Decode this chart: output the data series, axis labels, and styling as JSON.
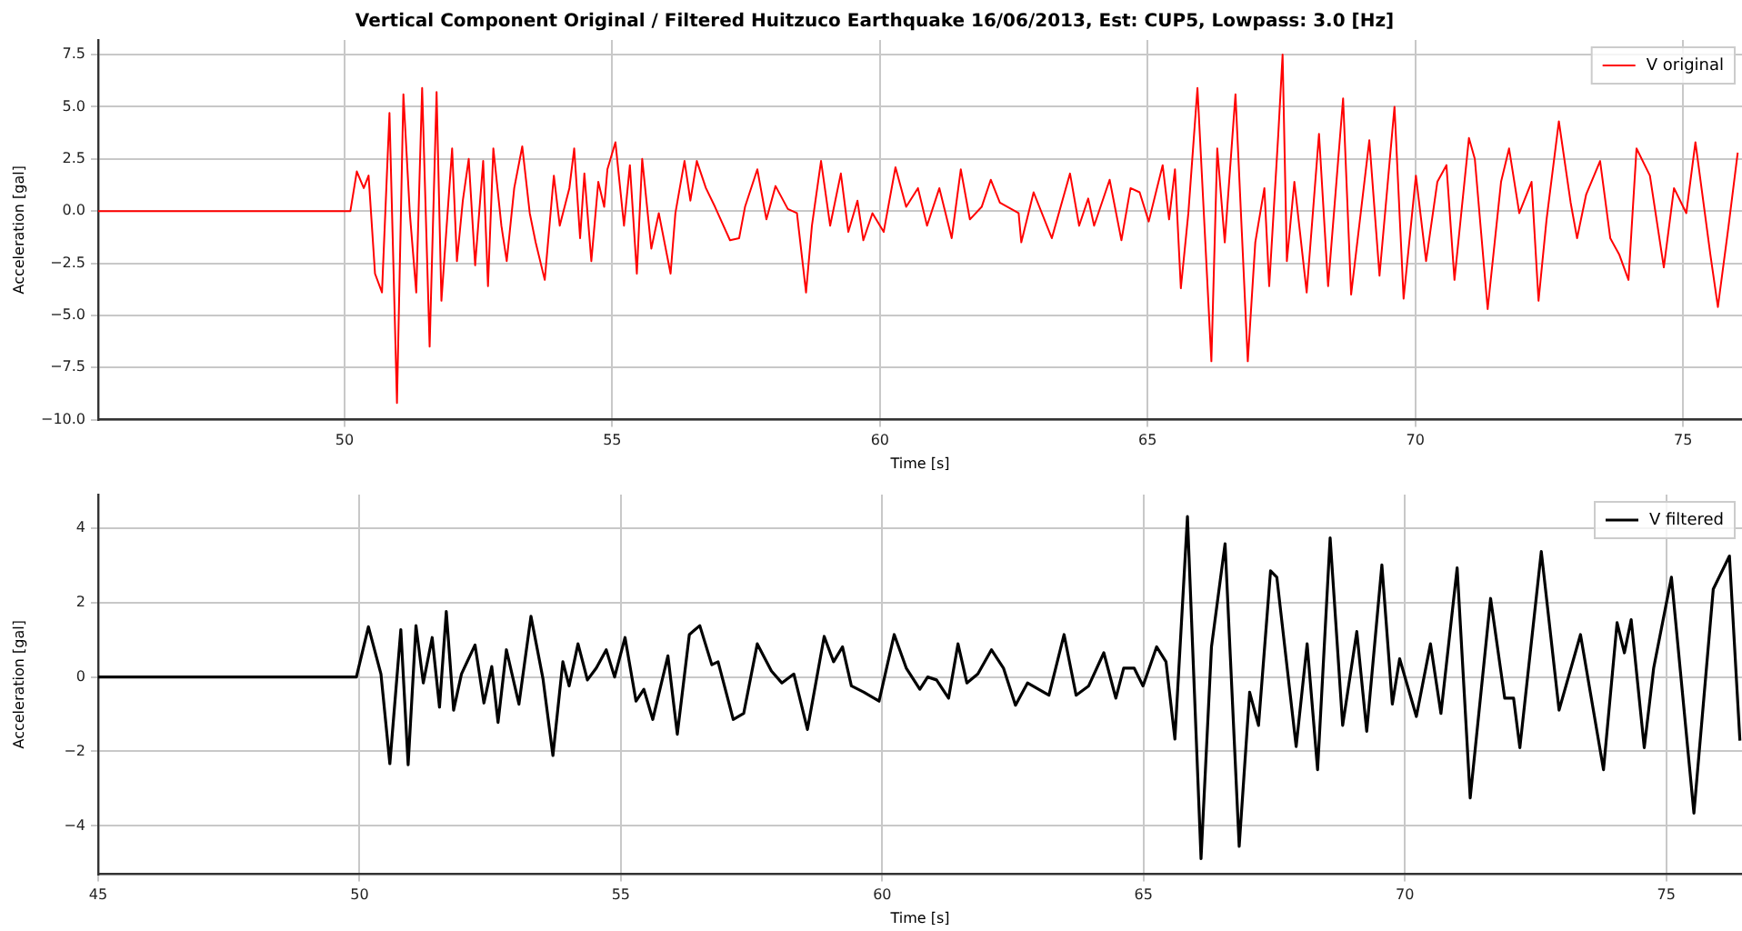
{
  "chart_data": [
    {
      "type": "line",
      "title": "Vertical Component Original / Filtered Huitzuco Earthquake 16/06/2013, Est: CUP5, Lowpass: 3.0 [Hz]",
      "xlabel": "Time [s]",
      "ylabel": "Acceleration [gal]",
      "xlim": [
        45.4,
        76.1
      ],
      "xticks": [
        50,
        55,
        60,
        65,
        70,
        75
      ],
      "ylim": [
        -10,
        8.2
      ],
      "yticks": [
        {
          "value": -10,
          "label": "−10.0"
        },
        {
          "value": -7.5,
          "label": "−7.5"
        },
        {
          "value": -5,
          "label": "−5.0"
        },
        {
          "value": -2.5,
          "label": "−2.5"
        },
        {
          "value": 0,
          "label": "0.0"
        },
        {
          "value": 2.5,
          "label": "2.5"
        },
        {
          "value": 5,
          "label": "5.0"
        },
        {
          "value": 7.5,
          "label": "7.5"
        }
      ],
      "grid": true,
      "legend": "top right",
      "series": [
        {
          "name": "V original",
          "color": "#ff0000",
          "x": [
            45.4,
            50.11,
            50.23,
            50.36,
            50.45,
            50.57,
            50.7,
            50.84,
            50.98,
            51.1,
            51.22,
            51.34,
            51.45,
            51.59,
            51.72,
            51.81,
            52.01,
            52.1,
            52.21,
            52.32,
            52.44,
            52.59,
            52.68,
            52.78,
            52.93,
            53.03,
            53.17,
            53.32,
            53.46,
            53.57,
            53.74,
            53.91,
            54.02,
            54.2,
            54.29,
            54.4,
            54.48,
            54.61,
            54.74,
            54.85,
            54.91,
            55.06,
            55.22,
            55.33,
            55.46,
            55.56,
            55.73,
            55.87,
            56.09,
            56.18,
            56.35,
            56.46,
            56.58,
            56.75,
            56.92,
            57.2,
            57.37,
            57.48,
            57.71,
            57.88,
            58.05,
            58.28,
            58.45,
            58.62,
            58.73,
            58.9,
            59.07,
            59.27,
            59.41,
            59.58,
            59.69,
            59.86,
            60.07,
            60.29,
            60.49,
            60.71,
            60.88,
            61.11,
            61.34,
            61.51,
            61.68,
            61.9,
            62.07,
            62.24,
            62.59,
            62.64,
            62.87,
            63.21,
            63.55,
            63.72,
            63.89,
            64.0,
            64.29,
            64.51,
            64.68,
            64.85,
            65.02,
            65.28,
            65.4,
            65.51,
            65.62,
            65.76,
            65.93,
            66.19,
            66.3,
            66.44,
            66.64,
            66.87,
            67.01,
            67.18,
            67.27,
            67.44,
            67.52,
            67.6,
            67.74,
            67.97,
            68.2,
            68.37,
            68.65,
            68.8,
            69.14,
            69.33,
            69.61,
            69.78,
            70.01,
            70.2,
            70.41,
            70.58,
            70.73,
            71.0,
            71.11,
            71.35,
            71.6,
            71.75,
            71.94,
            72.17,
            72.3,
            72.45,
            72.68,
            72.9,
            73.02,
            73.19,
            73.45,
            73.64,
            73.81,
            73.98,
            74.13,
            74.38,
            74.64,
            74.83,
            75.06,
            75.23,
            75.51,
            75.65,
            75.85,
            76.02
          ],
          "values": [
            0,
            0,
            1.9,
            1.1,
            1.7,
            -3.0,
            -3.9,
            4.7,
            -9.2,
            5.6,
            -0.1,
            -3.9,
            5.9,
            -6.5,
            5.7,
            -4.3,
            3.0,
            -2.4,
            0.5,
            2.5,
            -2.6,
            2.4,
            -3.6,
            3.0,
            -0.7,
            -2.4,
            1.1,
            3.1,
            -0.1,
            -1.5,
            -3.3,
            1.7,
            -0.7,
            1.1,
            3.0,
            -1.3,
            1.8,
            -2.4,
            1.4,
            0.2,
            2.0,
            3.3,
            -0.7,
            2.2,
            -3.0,
            2.5,
            -1.8,
            -0.1,
            -3.0,
            -0.1,
            2.4,
            0.5,
            2.4,
            1.1,
            0.2,
            -1.4,
            -1.3,
            0.2,
            2.0,
            -0.4,
            1.2,
            0.1,
            -0.1,
            -3.9,
            -0.7,
            2.4,
            -0.7,
            1.8,
            -1.0,
            0.5,
            -1.4,
            -0.1,
            -1.0,
            2.1,
            0.2,
            1.1,
            -0.7,
            1.1,
            -1.3,
            2.0,
            -0.4,
            0.2,
            1.5,
            0.4,
            -0.1,
            -1.5,
            0.9,
            -1.3,
            1.8,
            -0.7,
            0.6,
            -0.7,
            1.5,
            -1.4,
            1.1,
            0.9,
            -0.5,
            2.2,
            -0.4,
            2.0,
            -3.7,
            -0.1,
            5.9,
            -7.2,
            3.0,
            -1.5,
            5.6,
            -7.2,
            -1.5,
            1.1,
            -3.6,
            3.7,
            7.5,
            -2.4,
            1.4,
            -3.9,
            3.7,
            -3.6,
            5.4,
            -4.0,
            3.4,
            -3.1,
            5.0,
            -4.2,
            1.7,
            -2.4,
            1.4,
            2.2,
            -3.3,
            3.5,
            2.5,
            -4.7,
            1.4,
            3.0,
            -0.1,
            1.4,
            -4.3,
            -0.4,
            4.3,
            0.4,
            -1.3,
            0.8,
            2.4,
            -1.3,
            -2.1,
            -3.3,
            3.0,
            1.7,
            -2.7,
            1.1,
            -0.1,
            3.3,
            -2.1,
            -4.6,
            -0.7,
            2.8
          ]
        }
      ]
    },
    {
      "type": "line",
      "xlabel": "Time [s]",
      "ylabel": "Acceleration [gal]",
      "xlim": [
        45,
        76.45
      ],
      "xticks": [
        45,
        50,
        55,
        60,
        65,
        70,
        75
      ],
      "ylim": [
        -5.3,
        4.9
      ],
      "yticks": [
        {
          "value": -4,
          "label": "−4"
        },
        {
          "value": -2,
          "label": "−2"
        },
        0,
        2,
        4
      ],
      "grid": true,
      "legend": "top right",
      "series": [
        {
          "name": "V filtered",
          "color": "#000000",
          "x": [
            45,
            49.94,
            50.17,
            50.41,
            50.58,
            50.79,
            50.93,
            51.08,
            51.22,
            51.39,
            51.53,
            51.66,
            51.8,
            51.95,
            52.21,
            52.38,
            52.53,
            52.65,
            52.81,
            53.05,
            53.28,
            53.51,
            53.7,
            53.89,
            54.01,
            54.18,
            54.36,
            54.53,
            54.72,
            54.88,
            55.08,
            55.29,
            55.44,
            55.61,
            55.9,
            56.08,
            56.31,
            56.51,
            56.74,
            56.86,
            57.15,
            57.35,
            57.61,
            57.88,
            58.08,
            58.31,
            58.57,
            58.89,
            59.07,
            59.24,
            59.41,
            59.65,
            59.94,
            60.23,
            60.46,
            60.72,
            60.87,
            61.04,
            61.27,
            61.45,
            61.62,
            61.83,
            62.09,
            62.32,
            62.55,
            62.78,
            63.19,
            63.48,
            63.71,
            63.95,
            64.24,
            64.47,
            64.62,
            64.82,
            64.99,
            65.25,
            65.43,
            65.6,
            65.84,
            66.1,
            66.3,
            66.56,
            66.83,
            67.03,
            67.2,
            67.43,
            67.55,
            67.92,
            68.13,
            68.33,
            68.57,
            68.81,
            69.08,
            69.27,
            69.56,
            69.76,
            69.9,
            70.22,
            70.49,
            70.69,
            71.0,
            71.25,
            71.64,
            71.91,
            72.08,
            72.2,
            72.61,
            72.95,
            73.36,
            73.8,
            74.06,
            74.2,
            74.33,
            74.58,
            74.76,
            75.1,
            75.53,
            75.9,
            76.21,
            76.41
          ],
          "values": [
            0,
            0,
            1.35,
            0.08,
            -2.33,
            1.27,
            -2.36,
            1.38,
            -0.16,
            1.06,
            -0.81,
            1.76,
            -0.89,
            0.08,
            0.86,
            -0.7,
            0.28,
            -1.22,
            0.73,
            -0.73,
            1.63,
            -0.05,
            -2.11,
            0.41,
            -0.24,
            0.89,
            -0.08,
            0.24,
            0.73,
            0,
            1.06,
            -0.65,
            -0.33,
            -1.14,
            0.57,
            -1.54,
            1.14,
            1.38,
            0.33,
            0.41,
            -1.14,
            -0.98,
            0.89,
            0.16,
            -0.16,
            0.08,
            -1.41,
            1.09,
            0.41,
            0.81,
            -0.24,
            -0.41,
            -0.65,
            1.14,
            0.24,
            -0.33,
            0,
            -0.08,
            -0.57,
            0.89,
            -0.16,
            0.08,
            0.73,
            0.24,
            -0.76,
            -0.16,
            -0.49,
            1.14,
            -0.49,
            -0.24,
            0.65,
            -0.57,
            0.24,
            0.24,
            -0.24,
            0.81,
            0.41,
            -1.67,
            4.31,
            -4.88,
            0.81,
            3.58,
            -4.55,
            -0.41,
            -1.3,
            2.85,
            2.68,
            -1.87,
            0.89,
            -2.49,
            3.74,
            -1.3,
            1.22,
            -1.46,
            3.01,
            -0.73,
            0.49,
            -1.06,
            0.89,
            -0.98,
            2.93,
            -3.25,
            2.11,
            -0.57,
            -0.57,
            -1.9,
            3.37,
            -0.89,
            1.14,
            -2.49,
            1.46,
            0.65,
            1.54,
            -1.9,
            0.24,
            2.68,
            -3.66,
            2.36,
            3.25,
            -1.71
          ]
        }
      ]
    }
  ]
}
